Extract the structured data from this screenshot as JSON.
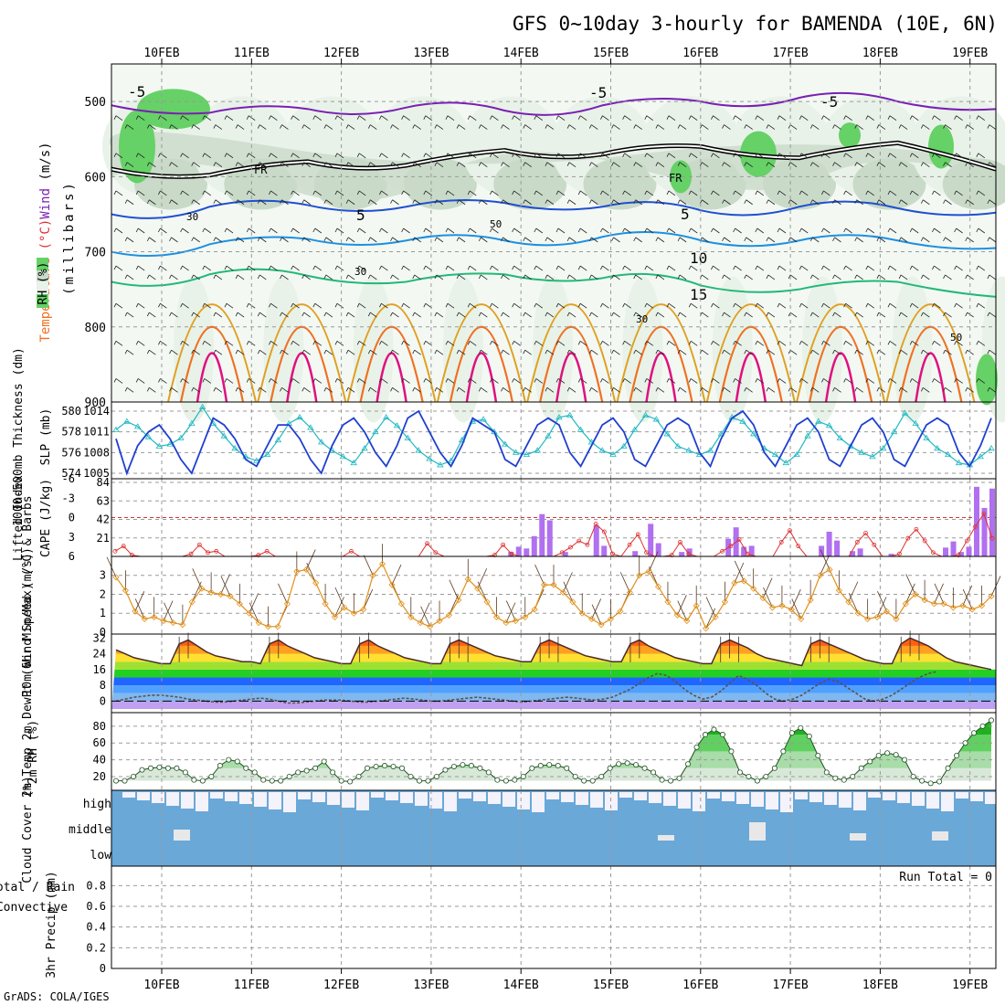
{
  "header": {
    "title": "GFS 0~10day 3-hourly for BAMENDA (10E, 6N)",
    "credit": "GrADS: COLA/IGES"
  },
  "dates": [
    "10FEB",
    "11FEB",
    "12FEB",
    "13FEB",
    "14FEB",
    "15FEB",
    "16FEB",
    "17FEB",
    "18FEB",
    "19FEB"
  ],
  "colors": {
    "temp_neg": "#7a1fb4",
    "temp_5": "#1f4fd1",
    "temp_10": "#1e90e0",
    "temp_15": "#22b878",
    "temp_20": "#e0a020",
    "temp_25": "#f07020",
    "temp_30": "#e01080",
    "rh_light": "#e8f2e8",
    "rh_mid": "#c9dac9",
    "rh_green": "#66d166",
    "slp": "#1f3fd0",
    "thickness": "#20b8c0",
    "cape": "#b070f0",
    "lifted_index": "#e03030",
    "wind_speed": "#e0901a",
    "cloud": "#6aa8d8"
  },
  "chart_data": [
    {
      "id": "upper-air",
      "type": "contour",
      "ylabel_parts": [
        {
          "text": "Temperature",
          "color": "#f07020"
        },
        {
          "text": " (°C)",
          "color": "#e03030"
        },
        {
          "text": "Wind",
          "color": "#7a1fb4"
        },
        {
          "text": " (m/s)",
          "color": "#000000"
        }
      ],
      "ylabel2": "(millibars)",
      "rh_legend": "RH (%)",
      "yticks": [
        500,
        600,
        700,
        800,
        900
      ],
      "ylim": [
        450,
        900
      ],
      "labels": {
        "minus5": "-5",
        "five": "5",
        "ten": "10",
        "fifteen": "15",
        "fr": "FR",
        "r30": "30",
        "r50": "50"
      },
      "isotherms": [
        {
          "name": "-5",
          "p": [
            505,
            515,
            510,
            508,
            512,
            505,
            500,
            495,
            500,
            510
          ]
        },
        {
          "name": "0",
          "p": [
            590,
            598,
            580,
            585,
            565,
            570,
            560,
            575,
            555,
            590
          ]
        },
        {
          "name": "5",
          "p": [
            650,
            640,
            638,
            640,
            635,
            640,
            645,
            640,
            642,
            648
          ]
        },
        {
          "name": "10",
          "p": [
            700,
            690,
            683,
            685,
            685,
            680,
            685,
            685,
            685,
            695
          ]
        },
        {
          "name": "15",
          "p": [
            740,
            730,
            732,
            740,
            730,
            735,
            745,
            750,
            740,
            760
          ]
        }
      ]
    },
    {
      "id": "slp-thickness",
      "type": "line",
      "ylabel_left": "1000-500mb Thickness (dm)",
      "ylabel_right": "SLP (mb)",
      "yticks_left": [
        574,
        576,
        578,
        580
      ],
      "yticks_right": [
        1005,
        1008,
        1011,
        1014
      ],
      "series": [
        {
          "key": "slp",
          "values": [
            1010,
            1005,
            1009,
            1011,
            1012,
            1010,
            1007,
            1005,
            1009,
            1013,
            1012,
            1010,
            1007,
            1006,
            1009,
            1012,
            1012,
            1010,
            1007,
            1005,
            1009,
            1012,
            1013,
            1011,
            1008,
            1006,
            1009,
            1013,
            1014,
            1011,
            1008,
            1006,
            1009,
            1013,
            1012,
            1011,
            1007,
            1006,
            1009,
            1012,
            1013,
            1012,
            1008,
            1006,
            1009,
            1012,
            1013,
            1011,
            1007,
            1006,
            1009,
            1012,
            1013,
            1012,
            1008,
            1006,
            1010,
            1013,
            1014,
            1012,
            1008,
            1006,
            1009,
            1012,
            1013,
            1011,
            1007,
            1006,
            1009,
            1012,
            1013,
            1011,
            1007,
            1006,
            1009,
            1012,
            1013,
            1012,
            1008,
            1006,
            1009,
            1013
          ]
        },
        {
          "key": "thickness",
          "values": [
            578.2,
            579.0,
            578.5,
            577.5,
            576.6,
            576.8,
            577.4,
            578.8,
            580.4,
            578.8,
            577.6,
            576.4,
            575.6,
            575.2,
            575.8,
            577.2,
            578.8,
            579.4,
            578.4,
            577.0,
            576.2,
            575.6,
            575.0,
            576.4,
            578.0,
            579.4,
            578.6,
            577.4,
            576.2,
            575.4,
            574.8,
            575.2,
            577.2,
            579.0,
            579.2,
            578.0,
            576.8,
            576.0,
            575.8,
            576.2,
            577.6,
            579.4,
            579.6,
            578.2,
            577.0,
            576.2,
            575.8,
            576.6,
            578.2,
            579.6,
            579.2,
            577.8,
            576.6,
            576.2,
            575.8,
            576.2,
            577.8,
            579.4,
            579.0,
            577.8,
            576.4,
            575.8,
            575.0,
            575.8,
            577.6,
            579.0,
            578.6,
            577.4,
            576.6,
            576.0,
            575.6,
            576.4,
            578.0,
            579.8,
            578.8,
            577.4,
            576.4,
            575.8,
            575.0,
            574.8,
            575.6,
            576.4
          ]
        }
      ]
    },
    {
      "id": "cape-li",
      "type": "bar",
      "ylabel_left": "Lifted Index",
      "ylabel_right": "CAPE (J/kg)",
      "yticks_left": [
        "-6",
        "-3",
        "0",
        "3",
        "6"
      ],
      "yticks_right": [
        21,
        42,
        63,
        84
      ],
      "cape": [
        0,
        0,
        0,
        0,
        0,
        0,
        0,
        0,
        0,
        0,
        0,
        0,
        0,
        0,
        0,
        0,
        0,
        0,
        0,
        0,
        0,
        0,
        0,
        0,
        0,
        0,
        0,
        0,
        0,
        0,
        0,
        0,
        0,
        0,
        0,
        0,
        0,
        0,
        0,
        0,
        0,
        0,
        0,
        0,
        0,
        0,
        0,
        0,
        0,
        0,
        0,
        5,
        11,
        9,
        23,
        48,
        41,
        0,
        5,
        0,
        0,
        0,
        35,
        12,
        0,
        0,
        0,
        6,
        0,
        37,
        15,
        0,
        0,
        5,
        9,
        0,
        0,
        0,
        0,
        20,
        33,
        11,
        12,
        0,
        0,
        0,
        0,
        0,
        0,
        0,
        0,
        12,
        28,
        18,
        0,
        6,
        9,
        0,
        0,
        0,
        3,
        0,
        0,
        0,
        0,
        0,
        0,
        10,
        17,
        5,
        11,
        79,
        55,
        77
      ],
      "li": [
        5.2,
        4.4,
        5.8,
        6,
        6,
        6,
        6,
        6,
        6,
        5.6,
        4.2,
        5.4,
        5.2,
        6,
        6,
        6,
        6,
        5.8,
        5.2,
        6,
        6,
        6,
        6,
        6,
        6,
        6,
        6,
        6,
        5.2,
        6,
        6,
        6,
        6,
        6,
        6,
        6,
        6,
        4.0,
        5.4,
        6,
        6,
        6,
        6,
        6,
        6,
        5.8,
        4.2,
        5.6,
        6,
        6,
        6,
        6,
        6,
        5.4,
        4.6,
        3.6,
        4.2,
        1.0,
        2.2,
        5.6,
        6,
        4.2,
        2.6,
        5.4,
        6,
        6,
        5.8,
        3.8,
        5.6,
        6,
        6,
        6,
        5.2,
        4.4,
        3.4,
        5.6,
        6,
        6,
        6,
        3.8,
        2.0,
        4.4,
        6,
        6,
        6,
        6,
        6,
        6,
        3.8,
        2.4,
        4.2,
        6,
        6,
        5.6,
        3.2,
        1.8,
        3.6,
        5.4,
        6,
        6,
        5.8,
        3.6,
        1.4,
        -0.6,
        3.2
      ]
    },
    {
      "id": "wind-10m",
      "type": "line",
      "ylabel": "10m Wind Speed (m/s) & Barbs",
      "yticks": [
        0,
        1,
        2,
        3
      ],
      "values": [
        2.9,
        2.2,
        1.1,
        0.7,
        0.8,
        0.6,
        0.5,
        0.4,
        1.6,
        2.3,
        2.1,
        2.0,
        1.9,
        1.5,
        1.0,
        0.5,
        0.3,
        0.3,
        1.5,
        3.2,
        3.3,
        2.6,
        1.5,
        0.8,
        1.3,
        1.0,
        1.2,
        3.0,
        3.6,
        2.5,
        1.5,
        0.8,
        0.5,
        0.3,
        0.6,
        0.9,
        1.7,
        2.8,
        2.3,
        1.6,
        0.8,
        0.5,
        0.6,
        0.8,
        1.2,
        2.5,
        2.5,
        2.1,
        1.6,
        1.0,
        0.7,
        0.4,
        0.7,
        1.1,
        2.1,
        3.0,
        3.2,
        2.4,
        1.6,
        0.9,
        0.6,
        1.4,
        0.2,
        0.8,
        1.6,
        2.6,
        2.7,
        2.3,
        1.8,
        1.3,
        1.4,
        1.2,
        0.7,
        1.7,
        3.0,
        3.3,
        2.2,
        1.6,
        1.0,
        0.7,
        0.8,
        1.1,
        0.7,
        1.5,
        2.0,
        1.7,
        1.5,
        1.5,
        1.3,
        1.4,
        1.2,
        1.4,
        1.9
      ]
    },
    {
      "id": "temp-2m",
      "type": "area",
      "ylabel": "2m Temp 2m DewPt (6hr Min/Max) (°C)",
      "yticks": [
        0,
        8,
        16,
        24,
        32
      ],
      "temp": [
        26,
        24,
        22,
        21,
        20,
        19,
        19,
        29,
        31,
        28,
        25,
        23,
        22,
        21,
        20,
        20,
        19,
        29,
        31,
        28,
        26,
        24,
        22,
        21,
        20,
        19,
        19,
        29,
        31,
        28,
        26,
        24,
        22,
        21,
        20,
        19,
        19,
        29,
        31,
        29,
        27,
        25,
        23,
        22,
        21,
        20,
        20,
        29,
        31,
        29,
        27,
        25,
        23,
        22,
        21,
        20,
        20,
        29,
        31,
        28,
        26,
        24,
        22,
        21,
        20,
        19,
        19,
        29,
        31,
        29,
        27,
        24,
        22,
        21,
        20,
        19,
        18,
        29,
        31,
        29,
        27,
        25,
        23,
        21,
        20,
        19,
        19,
        29,
        32,
        30,
        28,
        25,
        22,
        20,
        19,
        18,
        17,
        16
      ],
      "dewpt": [
        0,
        1,
        2,
        2.5,
        3,
        3,
        2.5,
        2,
        1,
        0.5,
        0,
        -0.5,
        -0.5,
        0,
        0.5,
        1,
        1.5,
        1,
        0,
        -1,
        -1,
        -0.5,
        0,
        0.5,
        0.5,
        0.5,
        0,
        -0.5,
        -0.5,
        0,
        0.5,
        1,
        1.5,
        1,
        0.5,
        0,
        0,
        0.5,
        1,
        1.5,
        2,
        1.5,
        1,
        0.5,
        0,
        -0.5,
        0,
        0.5,
        1,
        1.5,
        2,
        1.5,
        1,
        0.5,
        1,
        2,
        4,
        6,
        9,
        12,
        14,
        13,
        10,
        6,
        3,
        1,
        2,
        5,
        9,
        13,
        11,
        8,
        4,
        1,
        0,
        1,
        3,
        6,
        9,
        11,
        10,
        7,
        4,
        1,
        0,
        1,
        3,
        6,
        9,
        12,
        14,
        15
      ]
    },
    {
      "id": "rh-2m",
      "type": "area",
      "ylabel": "2m RH (%)",
      "yticks": [
        20,
        40,
        60,
        80
      ],
      "values": [
        15,
        15,
        20,
        28,
        30,
        31,
        30,
        30,
        25,
        16,
        15,
        20,
        33,
        40,
        38,
        30,
        25,
        16,
        15,
        15,
        20,
        25,
        27,
        30,
        38,
        25,
        15,
        14,
        20,
        30,
        32,
        33,
        32,
        30,
        20,
        15,
        15,
        20,
        28,
        32,
        34,
        33,
        30,
        25,
        16,
        15,
        16,
        20,
        30,
        33,
        34,
        33,
        30,
        20,
        15,
        15,
        20,
        30,
        35,
        36,
        34,
        30,
        25,
        16,
        15,
        18,
        35,
        55,
        70,
        76,
        70,
        50,
        25,
        20,
        15,
        20,
        30,
        50,
        72,
        78,
        68,
        45,
        25,
        18,
        16,
        20,
        30,
        38,
        45,
        48,
        46,
        40,
        20,
        15,
        12,
        14,
        30,
        45,
        60,
        72,
        80,
        87
      ]
    },
    {
      "id": "cloud",
      "type": "area",
      "ylabel": "Cloud Cover (%)",
      "levels": [
        "high",
        "middle",
        "low"
      ]
    },
    {
      "id": "precip",
      "type": "bar",
      "ylabel_left": "Total / Rain",
      "ylabel_left2": "Convective",
      "ylabel": "3hr Precip (mm)",
      "yticks": [
        "0",
        "0.2",
        "0.4",
        "0.6",
        "0.8"
      ],
      "run_total": "Run Total = 0",
      "values": []
    }
  ]
}
